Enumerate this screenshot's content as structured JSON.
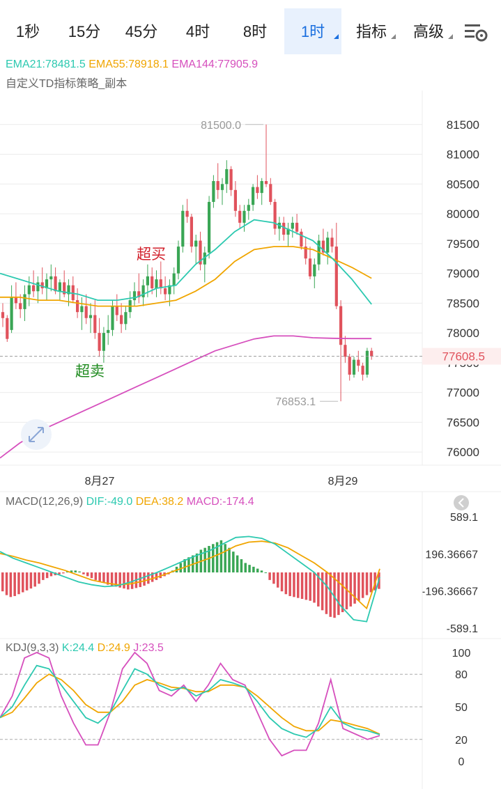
{
  "tabs": [
    {
      "label": "1秒",
      "active": false,
      "dropdown": false
    },
    {
      "label": "15分",
      "active": false,
      "dropdown": false
    },
    {
      "label": "45分",
      "active": false,
      "dropdown": false
    },
    {
      "label": "4时",
      "active": false,
      "dropdown": false
    },
    {
      "label": "8时",
      "active": false,
      "dropdown": false
    },
    {
      "label": "1时",
      "active": true,
      "dropdown": true
    },
    {
      "label": "指标",
      "active": false,
      "dropdown": true
    },
    {
      "label": "高级",
      "active": false,
      "dropdown": true
    }
  ],
  "settings_icon": "chart-settings-icon",
  "expand_icon": "expand-arrows-icon",
  "collapse_icon": "collapse-left-icon",
  "ema": {
    "ema21": "EMA21:78481.5",
    "ema55": "EMA55:78918.1",
    "ema144": "EMA144:77905.9"
  },
  "strategy_label": "自定义TD指标策略_副本",
  "colors": {
    "up": "#3aa655",
    "down": "#e0525c",
    "ema21": "#2cc9b0",
    "ema55": "#f0a500",
    "ema144": "#d64fbd",
    "active_tab": "#1a6fdf",
    "grid": "#ececec"
  },
  "chart_data": [
    {
      "type": "candlestick",
      "name": "price",
      "yticks": [
        81500,
        81000,
        80500,
        80000,
        79500,
        79000,
        78500,
        78000,
        77500,
        77000,
        76500,
        76000
      ],
      "ylim": [
        75780,
        82070
      ],
      "xticks": [
        "8月27",
        "8月29"
      ],
      "last_price": "77608.5",
      "max_label": "81500.0",
      "min_label": "76853.1",
      "annotations": [
        "超买",
        "超卖"
      ],
      "candles": [
        [
          78350,
          78500,
          78100,
          78250
        ],
        [
          78250,
          78300,
          77850,
          77900
        ],
        [
          78050,
          78800,
          78000,
          78600
        ],
        [
          78600,
          78850,
          78400,
          78500
        ],
        [
          78500,
          78650,
          78250,
          78400
        ],
        [
          78400,
          78800,
          78200,
          78650
        ],
        [
          78650,
          78950,
          78450,
          78800
        ],
        [
          78800,
          79050,
          78600,
          78700
        ],
        [
          78700,
          78950,
          78500,
          78850
        ],
        [
          78850,
          79100,
          78650,
          78750
        ],
        [
          78750,
          79000,
          78550,
          78900
        ],
        [
          78900,
          79150,
          78700,
          78950
        ],
        [
          78950,
          79100,
          78650,
          78700
        ],
        [
          78700,
          78900,
          78550,
          78850
        ],
        [
          78850,
          79050,
          78600,
          78650
        ],
        [
          78650,
          78900,
          78450,
          78800
        ],
        [
          78800,
          78950,
          78500,
          78550
        ],
        [
          78550,
          78750,
          78250,
          78350
        ],
        [
          78350,
          78600,
          78050,
          78450
        ],
        [
          78450,
          78650,
          78150,
          78250
        ],
        [
          78250,
          78500,
          78000,
          78300
        ],
        [
          78300,
          78550,
          77900,
          78000
        ],
        [
          78000,
          78250,
          77600,
          77700
        ],
        [
          77700,
          78100,
          77500,
          78000
        ],
        [
          78000,
          78300,
          77800,
          78050
        ],
        [
          78050,
          78550,
          77950,
          78450
        ],
        [
          78450,
          78650,
          78200,
          78300
        ],
        [
          78300,
          78500,
          78000,
          78150
        ],
        [
          78150,
          78450,
          78050,
          78350
        ],
        [
          78350,
          78700,
          78250,
          78550
        ],
        [
          78550,
          78850,
          78450,
          78700
        ],
        [
          78700,
          79000,
          78500,
          78600
        ],
        [
          78600,
          78900,
          78450,
          78800
        ],
        [
          78800,
          79150,
          78600,
          78950
        ],
        [
          78950,
          79100,
          78650,
          78750
        ],
        [
          78750,
          79050,
          78600,
          78900
        ],
        [
          78900,
          79200,
          78650,
          78750
        ],
        [
          78750,
          78950,
          78550,
          78650
        ],
        [
          78650,
          78900,
          78450,
          78800
        ],
        [
          78800,
          79100,
          78650,
          79000
        ],
        [
          79000,
          79550,
          78900,
          79450
        ],
        [
          79450,
          80150,
          79350,
          80050
        ],
        [
          80050,
          80250,
          79850,
          79950
        ],
        [
          79950,
          80000,
          79350,
          79450
        ],
        [
          79450,
          79650,
          79150,
          79550
        ],
        [
          79550,
          79700,
          79050,
          79150
        ],
        [
          79150,
          79450,
          78850,
          79350
        ],
        [
          79350,
          80300,
          79250,
          80200
        ],
        [
          80200,
          80650,
          80100,
          80550
        ],
        [
          80550,
          80850,
          80250,
          80400
        ],
        [
          80400,
          80600,
          80150,
          80500
        ],
        [
          80500,
          80900,
          80350,
          80750
        ],
        [
          80750,
          80800,
          80300,
          80400
        ],
        [
          80400,
          80550,
          79950,
          80050
        ],
        [
          80050,
          80150,
          79750,
          79850
        ],
        [
          79850,
          80150,
          79700,
          80050
        ],
        [
          80050,
          80250,
          79900,
          80150
        ],
        [
          80150,
          80500,
          80050,
          80450
        ],
        [
          80450,
          80650,
          80250,
          80350
        ],
        [
          80350,
          80600,
          80150,
          80550
        ],
        [
          80550,
          81500,
          80450,
          80500
        ],
        [
          80500,
          80600,
          80150,
          80200
        ],
        [
          80200,
          80250,
          79650,
          79750
        ],
        [
          79750,
          79950,
          79550,
          79850
        ],
        [
          79850,
          79950,
          79550,
          79650
        ],
        [
          79650,
          79850,
          79450,
          79750
        ],
        [
          79750,
          79950,
          79600,
          79850
        ],
        [
          79850,
          80000,
          79650,
          79700
        ],
        [
          79700,
          79750,
          79400,
          79450
        ],
        [
          79450,
          79600,
          79150,
          79250
        ],
        [
          79250,
          79450,
          78900,
          78950
        ],
        [
          78950,
          79250,
          78750,
          79150
        ],
        [
          79150,
          79650,
          79050,
          79550
        ],
        [
          79550,
          79750,
          79300,
          79350
        ],
        [
          79350,
          79700,
          79150,
          79600
        ],
        [
          79600,
          79750,
          79350,
          79450
        ],
        [
          79450,
          79850,
          78400,
          78450
        ],
        [
          78450,
          78550,
          76853,
          77800
        ],
        [
          77800,
          77950,
          77500,
          77600
        ],
        [
          77600,
          77650,
          77200,
          77300
        ],
        [
          77300,
          77600,
          77250,
          77550
        ],
        [
          77550,
          77700,
          77350,
          77450
        ],
        [
          77450,
          77500,
          77200,
          77300
        ],
        [
          77300,
          77750,
          77250,
          77700
        ],
        [
          77700,
          77750,
          77550,
          77609
        ]
      ],
      "ema21_series": [
        79000,
        78900,
        78800,
        78700,
        78650,
        78550,
        78550,
        78600,
        78750,
        78800,
        79150,
        79400,
        79700,
        79900,
        79850,
        79700,
        79550,
        79250,
        78900,
        78481.5
      ],
      "ema55_series": [
        78600,
        78600,
        78550,
        78550,
        78500,
        78450,
        78450,
        78450,
        78500,
        78550,
        78700,
        78900,
        79200,
        79400,
        79450,
        79450,
        79400,
        79250,
        79100,
        78918.1
      ],
      "ema144_series": [
        75900,
        76150,
        76350,
        76500,
        76650,
        76800,
        76950,
        77100,
        77250,
        77400,
        77550,
        77700,
        77800,
        77900,
        77950,
        77950,
        77920,
        77910,
        77906,
        77905.9
      ]
    },
    {
      "type": "bar",
      "name": "MACD",
      "label": "MACD(12,26,9)",
      "dif_label": "DIF:-49.0",
      "dea_label": "DEA:38.2",
      "macd_label": "MACD:-174.4",
      "yticks": [
        "589.1",
        "196.36667",
        "-196.36667",
        "-589.1"
      ],
      "ylim": [
        -589.1,
        589.1
      ],
      "histogram": [
        -200,
        -240,
        -260,
        -250,
        -230,
        -210,
        -190,
        -170,
        -150,
        -120,
        -80,
        -60,
        -40,
        -30,
        -20,
        -10,
        10,
        20,
        20,
        10,
        -20,
        -40,
        -60,
        -80,
        -100,
        -110,
        -130,
        -140,
        -150,
        -160,
        -170,
        -180,
        -175,
        -165,
        -155,
        -140,
        -120,
        -100,
        -80,
        -60,
        -40,
        -20,
        20,
        60,
        100,
        140,
        160,
        180,
        200,
        240,
        260,
        280,
        300,
        320,
        340,
        300,
        260,
        220,
        180,
        140,
        100,
        80,
        60,
        40,
        20,
        0,
        -80,
        -120,
        -160,
        -200,
        -230,
        -250,
        -260,
        -270,
        -280,
        -290,
        -300,
        -320,
        -360,
        -400,
        -440,
        -470,
        -480,
        -450,
        -420,
        -390,
        -360,
        -330,
        -300,
        -270,
        -240,
        -210,
        -190,
        -174.4
      ],
      "dif_series": [
        220,
        150,
        100,
        50,
        0,
        -50,
        -100,
        -130,
        -150,
        -140,
        -100,
        -50,
        0,
        60,
        120,
        180,
        230,
        300,
        370,
        380,
        360,
        300,
        200,
        100,
        0,
        -150,
        -350,
        -500,
        -520,
        -49
      ],
      "dea_series": [
        200,
        170,
        130,
        100,
        60,
        20,
        -30,
        -80,
        -110,
        -130,
        -120,
        -90,
        -50,
        0,
        50,
        100,
        150,
        210,
        280,
        320,
        330,
        310,
        260,
        180,
        100,
        0,
        -120,
        -250,
        -380,
        38.2
      ]
    },
    {
      "type": "line",
      "name": "KDJ",
      "label": "KDJ(9,3,3)",
      "k_label": "K:24.4",
      "d_label": "D:24.9",
      "j_label": "J:23.5",
      "yticks": [
        100,
        80,
        50,
        20,
        0
      ],
      "ylim": [
        0,
        100
      ],
      "k_series": [
        40,
        50,
        70,
        88,
        85,
        70,
        55,
        40,
        35,
        45,
        65,
        85,
        80,
        70,
        65,
        68,
        60,
        65,
        75,
        72,
        68,
        55,
        40,
        30,
        25,
        22,
        30,
        50,
        35,
        30,
        28,
        24.4
      ],
      "d_series": [
        40,
        45,
        58,
        72,
        80,
        75,
        65,
        52,
        45,
        45,
        55,
        70,
        75,
        72,
        68,
        67,
        64,
        64,
        70,
        70,
        68,
        60,
        50,
        40,
        32,
        28,
        28,
        38,
        36,
        33,
        30,
        24.9
      ],
      "j_series": [
        40,
        60,
        95,
        100,
        95,
        60,
        35,
        15,
        15,
        45,
        85,
        100,
        90,
        65,
        60,
        70,
        55,
        70,
        90,
        75,
        70,
        45,
        20,
        5,
        10,
        10,
        35,
        75,
        30,
        25,
        20,
        23.5
      ]
    }
  ]
}
